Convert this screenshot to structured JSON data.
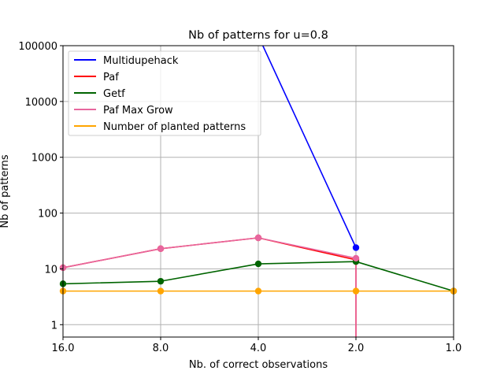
{
  "chart_data": {
    "type": "line",
    "title": "Nb of patterns for u=0.8",
    "xlabel": "Nb. of correct observations",
    "ylabel": "Nb of patterns",
    "x_scale": "log2-reversed",
    "y_scale": "log",
    "xlim": [
      16.0,
      1.0
    ],
    "ylim": [
      0.6,
      100000
    ],
    "x_ticks": [
      16.0,
      8.0,
      4.0,
      2.0,
      1.0
    ],
    "x_tick_labels": [
      "16.0",
      "8.0",
      "4.0",
      "2.0",
      "1.0"
    ],
    "y_ticks": [
      1,
      10,
      100,
      1000,
      10000,
      100000
    ],
    "y_tick_labels": [
      "1",
      "10",
      "100",
      "1000",
      "10000",
      "100000"
    ],
    "grid": true,
    "legend_position": "top-left",
    "series": [
      {
        "name": "Multidupehack",
        "color": "#0000ff",
        "x": [
          4.0,
          2.0
        ],
        "y": [
          150000,
          24
        ]
      },
      {
        "name": "Paf",
        "color": "#ff0000",
        "x": [
          16.0,
          8.0,
          4.0,
          2.0,
          2.0
        ],
        "y": [
          10.5,
          23,
          36,
          14.5,
          0.3
        ]
      },
      {
        "name": "Getf",
        "color": "#006400",
        "x": [
          16.0,
          8.0,
          4.0,
          2.0,
          1.0
        ],
        "y": [
          5.4,
          6,
          12.3,
          13.5,
          4
        ]
      },
      {
        "name": "Paf Max Grow",
        "color": "#e7669e",
        "x": [
          16.0,
          8.0,
          4.0,
          2.0,
          2.0
        ],
        "y": [
          10.5,
          23,
          36,
          15.5,
          0.3
        ]
      },
      {
        "name": "Number of planted patterns",
        "color": "#ffa500",
        "x": [
          16.0,
          8.0,
          4.0,
          2.0,
          1.0
        ],
        "y": [
          4,
          4,
          4,
          4,
          4
        ]
      }
    ]
  }
}
